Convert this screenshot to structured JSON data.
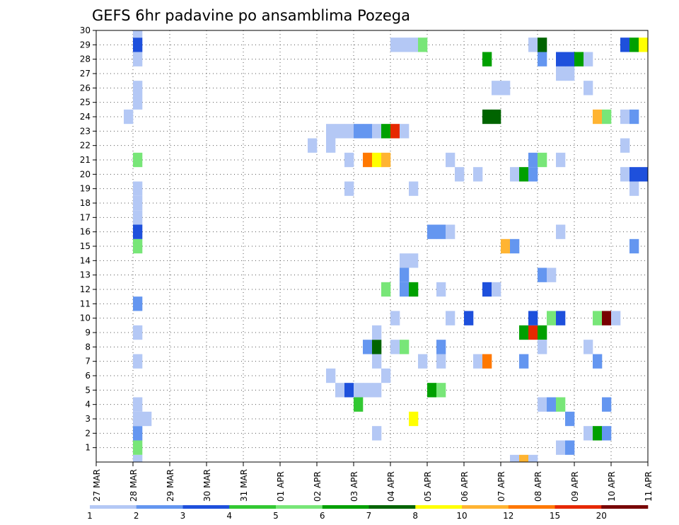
{
  "chart_data": {
    "type": "heatmap",
    "title": "GEFS 6hr padavine po ansamblima Pozega",
    "xlabel": "",
    "ylabel": "",
    "y_ticks": [
      1,
      2,
      3,
      4,
      5,
      6,
      7,
      8,
      9,
      10,
      11,
      12,
      13,
      14,
      15,
      16,
      17,
      18,
      19,
      20,
      21,
      22,
      23,
      24,
      25,
      26,
      27,
      28,
      29,
      30
    ],
    "x_ticks": [
      "27 MAR",
      "28 MAR",
      "29 MAR",
      "30 MAR",
      "31 MAR",
      "01 APR",
      "02 APR",
      "03 APR",
      "04 APR",
      "05 APR",
      "06 APR",
      "07 APR",
      "08 APR",
      "09 APR",
      "10 APR",
      "11 APR"
    ],
    "x_range_days": [
      0,
      15
    ],
    "y_range": [
      0,
      30
    ],
    "grid": true,
    "colorbar": {
      "levels": [
        "1",
        "2",
        "3",
        "4",
        "5",
        "6",
        "7",
        "8",
        "10",
        "12",
        "15",
        "20"
      ],
      "colors": [
        "#b4c8f5",
        "#6496f0",
        "#1e50dc",
        "#32c832",
        "#78e678",
        "#00a000",
        "#006400",
        "#ffff00",
        "#ffb432",
        "#ff7800",
        "#e62800",
        "#780000"
      ]
    },
    "cells": [
      {
        "x": 1.0,
        "y": 0,
        "c": 0
      },
      {
        "x": 1.0,
        "y": 1,
        "c": 4
      },
      {
        "x": 1.0,
        "y": 2,
        "c": 1
      },
      {
        "x": 1.0,
        "y": 3,
        "c": 0
      },
      {
        "x": 1.25,
        "y": 3,
        "c": 0
      },
      {
        "x": 1.0,
        "y": 4,
        "c": 0
      },
      {
        "x": 1.0,
        "y": 7,
        "c": 0
      },
      {
        "x": 1.0,
        "y": 9,
        "c": 0
      },
      {
        "x": 1.0,
        "y": 11,
        "c": 1
      },
      {
        "x": 1.0,
        "y": 15,
        "c": 4
      },
      {
        "x": 1.0,
        "y": 16,
        "c": 2
      },
      {
        "x": 1.0,
        "y": 17,
        "c": 0
      },
      {
        "x": 1.0,
        "y": 18,
        "c": 0
      },
      {
        "x": 1.0,
        "y": 19,
        "c": 0
      },
      {
        "x": 1.0,
        "y": 21,
        "c": 4
      },
      {
        "x": 0.75,
        "y": 24,
        "c": 0
      },
      {
        "x": 1.0,
        "y": 25,
        "c": 0
      },
      {
        "x": 1.0,
        "y": 26,
        "c": 0
      },
      {
        "x": 1.0,
        "y": 28,
        "c": 0
      },
      {
        "x": 1.0,
        "y": 29,
        "c": 2
      },
      {
        "x": 1.0,
        "y": 30,
        "c": 0
      },
      {
        "x": 5.75,
        "y": 22,
        "c": 0
      },
      {
        "x": 6.25,
        "y": 22,
        "c": 0
      },
      {
        "x": 6.25,
        "y": 6,
        "c": 0
      },
      {
        "x": 6.5,
        "y": 5,
        "c": 0
      },
      {
        "x": 6.75,
        "y": 5,
        "c": 2
      },
      {
        "x": 7.0,
        "y": 5,
        "c": 0
      },
      {
        "x": 7.25,
        "y": 5,
        "c": 0
      },
      {
        "x": 7.5,
        "y": 5,
        "c": 0
      },
      {
        "x": 6.75,
        "y": 19,
        "c": 0
      },
      {
        "x": 6.75,
        "y": 21,
        "c": 0
      },
      {
        "x": 6.25,
        "y": 23,
        "c": 0
      },
      {
        "x": 6.5,
        "y": 23,
        "c": 0
      },
      {
        "x": 6.75,
        "y": 23,
        "c": 0
      },
      {
        "x": 7.0,
        "y": 23,
        "c": 1
      },
      {
        "x": 7.25,
        "y": 23,
        "c": 1
      },
      {
        "x": 7.5,
        "y": 23,
        "c": 0
      },
      {
        "x": 7.75,
        "y": 23,
        "c": 5
      },
      {
        "x": 8.0,
        "y": 23,
        "c": 10
      },
      {
        "x": 8.25,
        "y": 23,
        "c": 0
      },
      {
        "x": 7.0,
        "y": 4,
        "c": 3
      },
      {
        "x": 7.25,
        "y": 8,
        "c": 1
      },
      {
        "x": 7.5,
        "y": 8,
        "c": 6
      },
      {
        "x": 7.5,
        "y": 7,
        "c": 0
      },
      {
        "x": 7.5,
        "y": 9,
        "c": 0
      },
      {
        "x": 7.75,
        "y": 6,
        "c": 0
      },
      {
        "x": 7.5,
        "y": 2,
        "c": 0
      },
      {
        "x": 7.25,
        "y": 21,
        "c": 9
      },
      {
        "x": 7.5,
        "y": 21,
        "c": 7
      },
      {
        "x": 7.75,
        "y": 21,
        "c": 8
      },
      {
        "x": 7.75,
        "y": 12,
        "c": 4
      },
      {
        "x": 8.0,
        "y": 8,
        "c": 0
      },
      {
        "x": 8.25,
        "y": 8,
        "c": 4
      },
      {
        "x": 8.0,
        "y": 10,
        "c": 0
      },
      {
        "x": 8.25,
        "y": 12,
        "c": 1
      },
      {
        "x": 8.5,
        "y": 12,
        "c": 5
      },
      {
        "x": 8.25,
        "y": 13,
        "c": 1
      },
      {
        "x": 8.25,
        "y": 14,
        "c": 0
      },
      {
        "x": 8.5,
        "y": 14,
        "c": 0
      },
      {
        "x": 8.5,
        "y": 3,
        "c": 7
      },
      {
        "x": 8.5,
        "y": 19,
        "c": 0
      },
      {
        "x": 8.75,
        "y": 7,
        "c": 0
      },
      {
        "x": 8.0,
        "y": 29,
        "c": 0
      },
      {
        "x": 8.25,
        "y": 29,
        "c": 0
      },
      {
        "x": 8.5,
        "y": 29,
        "c": 0
      },
      {
        "x": 8.75,
        "y": 29,
        "c": 4
      },
      {
        "x": 9.0,
        "y": 5,
        "c": 5
      },
      {
        "x": 9.25,
        "y": 5,
        "c": 4
      },
      {
        "x": 9.25,
        "y": 7,
        "c": 0
      },
      {
        "x": 9.25,
        "y": 8,
        "c": 1
      },
      {
        "x": 9.25,
        "y": 12,
        "c": 0
      },
      {
        "x": 9.0,
        "y": 16,
        "c": 1
      },
      {
        "x": 9.25,
        "y": 16,
        "c": 1
      },
      {
        "x": 9.5,
        "y": 16,
        "c": 0
      },
      {
        "x": 9.5,
        "y": 10,
        "c": 0
      },
      {
        "x": 9.5,
        "y": 21,
        "c": 0
      },
      {
        "x": 9.75,
        "y": 20,
        "c": 0
      },
      {
        "x": 10.25,
        "y": 20,
        "c": 0
      },
      {
        "x": 10.0,
        "y": 10,
        "c": 2
      },
      {
        "x": 10.25,
        "y": 7,
        "c": 0
      },
      {
        "x": 10.5,
        "y": 7,
        "c": 9
      },
      {
        "x": 10.5,
        "y": 12,
        "c": 2
      },
      {
        "x": 10.75,
        "y": 12,
        "c": 0
      },
      {
        "x": 10.5,
        "y": 24,
        "c": 6
      },
      {
        "x": 10.75,
        "y": 24,
        "c": 6
      },
      {
        "x": 10.5,
        "y": 28,
        "c": 5
      },
      {
        "x": 10.75,
        "y": 26,
        "c": 0
      },
      {
        "x": 11.0,
        "y": 26,
        "c": 0
      },
      {
        "x": 11.0,
        "y": 15,
        "c": 8
      },
      {
        "x": 11.25,
        "y": 15,
        "c": 1
      },
      {
        "x": 11.25,
        "y": 0,
        "c": 0
      },
      {
        "x": 11.5,
        "y": 0,
        "c": 8
      },
      {
        "x": 11.75,
        "y": 0,
        "c": 0
      },
      {
        "x": 11.25,
        "y": 20,
        "c": 0
      },
      {
        "x": 11.5,
        "y": 20,
        "c": 5
      },
      {
        "x": 11.75,
        "y": 20,
        "c": 1
      },
      {
        "x": 11.5,
        "y": 7,
        "c": 1
      },
      {
        "x": 11.5,
        "y": 9,
        "c": 5
      },
      {
        "x": 11.75,
        "y": 9,
        "c": 10
      },
      {
        "x": 12.0,
        "y": 9,
        "c": 5
      },
      {
        "x": 11.75,
        "y": 10,
        "c": 2
      },
      {
        "x": 11.75,
        "y": 21,
        "c": 1
      },
      {
        "x": 12.0,
        "y": 21,
        "c": 4
      },
      {
        "x": 11.75,
        "y": 29,
        "c": 0
      },
      {
        "x": 12.0,
        "y": 29,
        "c": 6
      },
      {
        "x": 12.0,
        "y": 28,
        "c": 1
      },
      {
        "x": 12.0,
        "y": 4,
        "c": 0
      },
      {
        "x": 12.0,
        "y": 8,
        "c": 0
      },
      {
        "x": 12.0,
        "y": 13,
        "c": 1
      },
      {
        "x": 12.25,
        "y": 13,
        "c": 0
      },
      {
        "x": 12.25,
        "y": 4,
        "c": 1
      },
      {
        "x": 12.5,
        "y": 4,
        "c": 4
      },
      {
        "x": 12.25,
        "y": 10,
        "c": 4
      },
      {
        "x": 12.5,
        "y": 10,
        "c": 2
      },
      {
        "x": 12.5,
        "y": 21,
        "c": 0
      },
      {
        "x": 12.5,
        "y": 16,
        "c": 0
      },
      {
        "x": 12.5,
        "y": 1,
        "c": 0
      },
      {
        "x": 12.75,
        "y": 1,
        "c": 1
      },
      {
        "x": 12.75,
        "y": 3,
        "c": 1
      },
      {
        "x": 12.5,
        "y": 27,
        "c": 0
      },
      {
        "x": 12.75,
        "y": 27,
        "c": 0
      },
      {
        "x": 12.5,
        "y": 28,
        "c": 2
      },
      {
        "x": 12.75,
        "y": 28,
        "c": 2
      },
      {
        "x": 13.0,
        "y": 28,
        "c": 5
      },
      {
        "x": 13.25,
        "y": 28,
        "c": 0
      },
      {
        "x": 13.25,
        "y": 26,
        "c": 0
      },
      {
        "x": 13.25,
        "y": 8,
        "c": 0
      },
      {
        "x": 13.25,
        "y": 2,
        "c": 0
      },
      {
        "x": 13.5,
        "y": 2,
        "c": 5
      },
      {
        "x": 13.75,
        "y": 2,
        "c": 1
      },
      {
        "x": 13.5,
        "y": 7,
        "c": 1
      },
      {
        "x": 13.5,
        "y": 10,
        "c": 4
      },
      {
        "x": 13.75,
        "y": 10,
        "c": 11
      },
      {
        "x": 14.0,
        "y": 10,
        "c": 0
      },
      {
        "x": 13.5,
        "y": 24,
        "c": 8
      },
      {
        "x": 13.75,
        "y": 24,
        "c": 4
      },
      {
        "x": 13.75,
        "y": 4,
        "c": 1
      },
      {
        "x": 14.25,
        "y": 20,
        "c": 0
      },
      {
        "x": 14.5,
        "y": 20,
        "c": 2
      },
      {
        "x": 14.75,
        "y": 20,
        "c": 2
      },
      {
        "x": 14.5,
        "y": 19,
        "c": 0
      },
      {
        "x": 14.25,
        "y": 22,
        "c": 0
      },
      {
        "x": 14.25,
        "y": 24,
        "c": 0
      },
      {
        "x": 14.5,
        "y": 24,
        "c": 1
      },
      {
        "x": 14.25,
        "y": 29,
        "c": 2
      },
      {
        "x": 14.5,
        "y": 29,
        "c": 5
      },
      {
        "x": 14.75,
        "y": 29,
        "c": 7
      },
      {
        "x": 14.5,
        "y": 15,
        "c": 1
      }
    ]
  }
}
